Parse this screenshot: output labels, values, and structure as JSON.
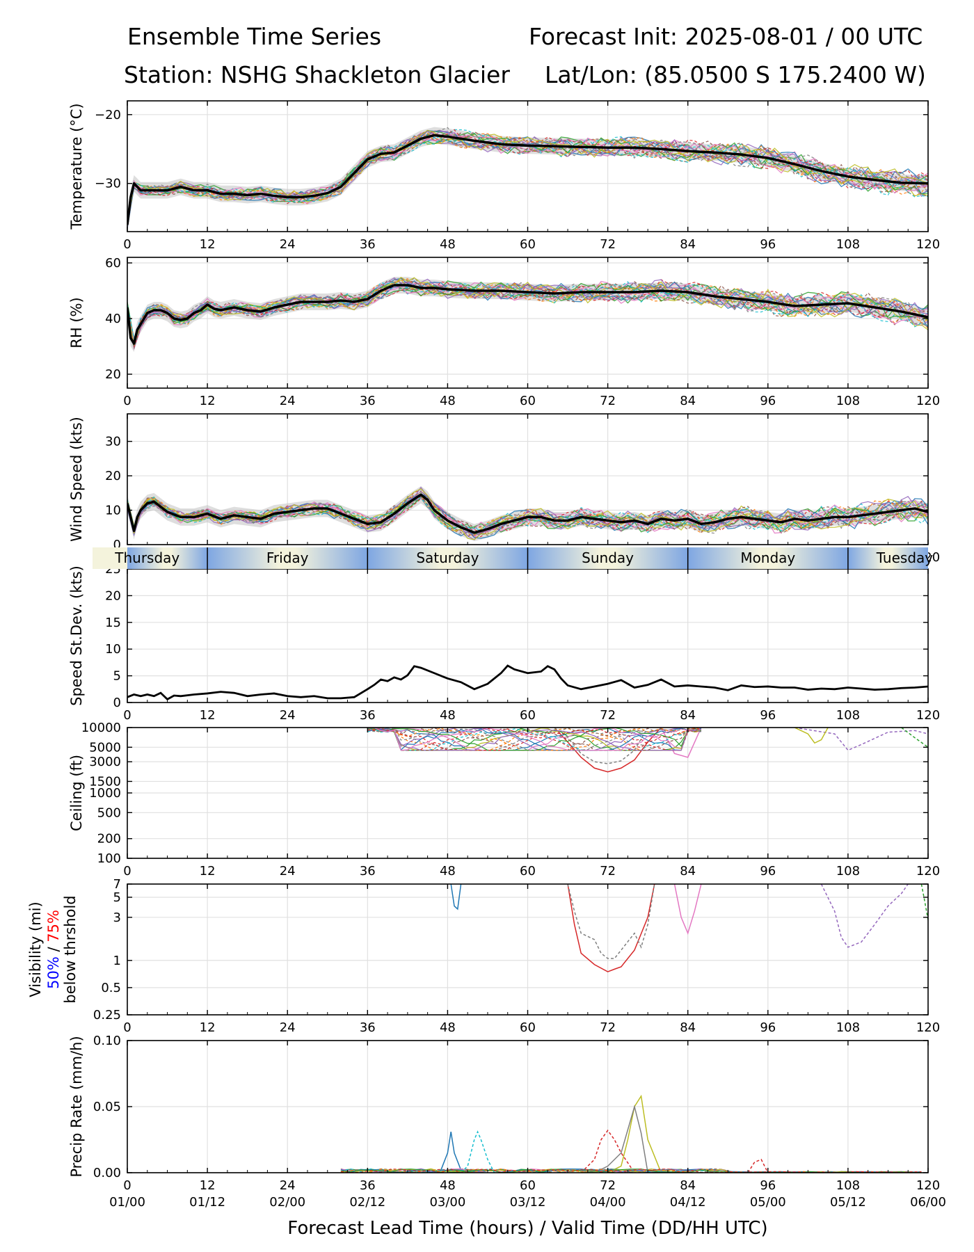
{
  "header": {
    "title_left": "Ensemble Time Series",
    "title_right": "Forecast Init: 2025-08-01 / 00 UTC",
    "station": "Station: NSHG Shackleton Glacier",
    "latlon": "Lat/Lon: (85.0500 S 175.2400 W)"
  },
  "x_axis": {
    "ticks": [
      0,
      12,
      24,
      36,
      48,
      60,
      72,
      84,
      96,
      108,
      120
    ],
    "valid_time_labels": [
      "01/00",
      "01/12",
      "02/00",
      "02/12",
      "03/00",
      "03/12",
      "04/00",
      "04/12",
      "05/00",
      "05/12",
      "06/00"
    ],
    "xlabel": "Forecast Lead Time (hours) / Valid Time (DD/HH UTC)",
    "range": [
      0,
      120
    ]
  },
  "day_band": {
    "labels": [
      "Thursday",
      "Friday",
      "Saturday",
      "Sunday",
      "Monday",
      "Tuesday"
    ],
    "boundaries_hours": [
      12,
      36,
      60,
      84,
      108
    ]
  },
  "colors": {
    "mean_line": "#000000",
    "spread_fill": "#bdbdbd",
    "band_light": "#f4f3dc",
    "band_dark": "#7ea6e2",
    "vis_50": "#0000ff",
    "vis_75": "#ff0000",
    "members": [
      "#1f77b4",
      "#ff7f0e",
      "#2ca02c",
      "#d62728",
      "#9467bd",
      "#8c564b",
      "#e377c2",
      "#7f7f7f",
      "#bcbd22",
      "#17becf"
    ]
  },
  "chart_data": [
    {
      "type": "line",
      "id": "temperature",
      "ylabel": "Temperature (°C)",
      "ylim": [
        -37,
        -18
      ],
      "yticks": [
        -30,
        -20
      ],
      "grid": true,
      "series": [
        {
          "name": "ensemble mean",
          "x": [
            0,
            0.5,
            1,
            2,
            4,
            6,
            8,
            10,
            12,
            14,
            16,
            18,
            20,
            22,
            24,
            26,
            28,
            30,
            32,
            34,
            36,
            38,
            40,
            42,
            44,
            46,
            48,
            52,
            56,
            60,
            64,
            68,
            72,
            76,
            80,
            84,
            88,
            92,
            96,
            100,
            104,
            108,
            112,
            116,
            120
          ],
          "y": [
            -36,
            -32,
            -30,
            -31,
            -31,
            -31,
            -30.5,
            -31,
            -31,
            -31.5,
            -31.5,
            -31.7,
            -31.5,
            -31.8,
            -32,
            -32,
            -31.8,
            -31.4,
            -30.5,
            -28.5,
            -26.5,
            -25.7,
            -25.5,
            -24.5,
            -23.5,
            -23,
            -23.2,
            -23.8,
            -24.3,
            -24.5,
            -24.6,
            -24.7,
            -24.8,
            -24.8,
            -25,
            -25.3,
            -25.5,
            -25.8,
            -26.3,
            -27.2,
            -28.2,
            -29,
            -29.5,
            -29.9,
            -30
          ]
        }
      ]
    },
    {
      "type": "line",
      "id": "rh",
      "ylabel": "RH (%)",
      "ylim": [
        15,
        62
      ],
      "yticks": [
        20,
        40,
        60
      ],
      "grid": true,
      "series": [
        {
          "name": "ensemble mean",
          "x": [
            0,
            0.5,
            1,
            1.5,
            2,
            3,
            4,
            5,
            6,
            7,
            8,
            9,
            10,
            11,
            12,
            13,
            14,
            16,
            18,
            20,
            22,
            24,
            26,
            28,
            30,
            32,
            34,
            36,
            38,
            40,
            42,
            44,
            46,
            48,
            52,
            56,
            60,
            64,
            68,
            72,
            76,
            80,
            84,
            88,
            92,
            96,
            100,
            104,
            108,
            112,
            116,
            120
          ],
          "y": [
            44,
            33,
            31,
            36,
            38,
            42,
            43,
            43,
            42,
            40,
            39.5,
            40,
            42,
            43,
            45,
            43.5,
            43,
            44,
            43,
            42.5,
            44,
            45,
            46,
            46,
            46,
            46.5,
            46,
            47,
            50,
            52,
            52,
            51,
            51,
            50.5,
            50,
            50,
            49.5,
            49,
            49.5,
            49.5,
            49.5,
            50,
            49.5,
            48,
            47,
            46,
            44.5,
            45,
            45.5,
            44,
            42.5,
            40.5
          ]
        }
      ]
    },
    {
      "type": "line",
      "id": "wind_speed",
      "ylabel": "Wind Speed (kts)",
      "ylim": [
        0,
        38
      ],
      "yticks": [
        0,
        10,
        20,
        30
      ],
      "grid": true,
      "series": [
        {
          "name": "ensemble mean",
          "x": [
            0,
            0.5,
            1,
            1.5,
            2,
            3,
            4,
            5,
            6,
            8,
            10,
            12,
            14,
            16,
            18,
            20,
            22,
            24,
            26,
            28,
            30,
            32,
            34,
            36,
            38,
            40,
            42,
            44,
            45,
            46,
            48,
            50,
            52,
            54,
            56,
            58,
            60,
            62,
            64,
            66,
            68,
            70,
            72,
            74,
            76,
            78,
            80,
            82,
            84,
            86,
            88,
            90,
            92,
            94,
            96,
            98,
            100,
            102,
            104,
            106,
            108,
            110,
            112,
            114,
            116,
            118,
            120
          ],
          "y": [
            12,
            8,
            4,
            8,
            10,
            12,
            12.5,
            11,
            9.5,
            8,
            8,
            9,
            7.5,
            8.5,
            8,
            7.5,
            9,
            9.5,
            10,
            10.5,
            10.5,
            9,
            7.5,
            6,
            6.5,
            9,
            12,
            14.5,
            13,
            10,
            7,
            5,
            3.5,
            4.5,
            6,
            7,
            8,
            8,
            7,
            7,
            8,
            7.5,
            7,
            6.5,
            7,
            6,
            7.5,
            7,
            7.5,
            6,
            6.5,
            7.5,
            8,
            7.5,
            7,
            6.5,
            7.5,
            7,
            7.5,
            8,
            8,
            8.5,
            9,
            9.5,
            10,
            10.5,
            9.5
          ]
        }
      ]
    },
    {
      "type": "line",
      "id": "speed_stdev",
      "ylabel": "Speed St.Dev. (kts)",
      "ylim": [
        0,
        25
      ],
      "yticks": [
        0,
        5,
        10,
        15,
        20,
        25
      ],
      "grid": true,
      "series": [
        {
          "name": "speed st.dev.",
          "x": [
            0,
            1,
            2,
            3,
            4,
            5,
            6,
            7,
            8,
            10,
            12,
            14,
            16,
            18,
            20,
            22,
            24,
            26,
            28,
            30,
            32,
            34,
            36,
            37,
            38,
            39,
            40,
            41,
            42,
            43,
            44,
            46,
            48,
            50,
            52,
            54,
            56,
            57,
            58,
            60,
            62,
            63,
            64,
            65,
            66,
            68,
            70,
            72,
            74,
            76,
            78,
            80,
            82,
            84,
            86,
            88,
            90,
            92,
            94,
            96,
            98,
            100,
            102,
            104,
            106,
            108,
            110,
            112,
            114,
            116,
            118,
            120
          ],
          "y": [
            1,
            1.5,
            1.2,
            1.5,
            1.2,
            1.8,
            0.6,
            1.3,
            1.2,
            1.5,
            1.7,
            2,
            1.8,
            1.2,
            1.5,
            1.7,
            1.2,
            1,
            1.2,
            0.8,
            0.8,
            1,
            2.5,
            3.3,
            4.3,
            4,
            4.7,
            4.3,
            5.1,
            6.8,
            6.5,
            5.5,
            4.5,
            3.8,
            2.5,
            3.5,
            5.5,
            6.9,
            6.2,
            5.5,
            5.8,
            6.8,
            6.2,
            4.5,
            3.2,
            2.5,
            3,
            3.5,
            4.2,
            2.8,
            3.3,
            4.3,
            3,
            3.2,
            3,
            2.8,
            2.3,
            3.2,
            2.9,
            3,
            2.8,
            2.8,
            2.4,
            2.6,
            2.5,
            2.8,
            2.6,
            2.4,
            2.5,
            2.7,
            2.8,
            3
          ]
        }
      ]
    },
    {
      "type": "line",
      "id": "ceiling",
      "ylabel": "Ceiling (ft)",
      "yscale": "log",
      "ylim": [
        100,
        10000
      ],
      "yticks": [
        100,
        200,
        500,
        1000,
        1500,
        3000,
        5000,
        10000
      ],
      "grid": true,
      "series": [
        {
          "name": "member-red",
          "x": [
            64,
            66,
            68,
            70,
            72,
            74,
            76,
            78,
            80
          ],
          "y": [
            10000,
            6000,
            3500,
            2400,
            2100,
            2400,
            3200,
            6000,
            10000
          ]
        },
        {
          "name": "member-gray",
          "x": [
            64,
            66,
            68,
            70,
            72,
            74,
            76,
            78
          ],
          "y": [
            10000,
            7000,
            4000,
            3000,
            2800,
            3100,
            4500,
            10000
          ]
        },
        {
          "name": "member-pink",
          "x": [
            80,
            82,
            84,
            86
          ],
          "y": [
            10000,
            4000,
            3500,
            10000
          ]
        },
        {
          "name": "member-purple",
          "x": [
            100,
            106,
            108,
            110,
            114,
            118,
            120
          ],
          "y": [
            10000,
            8000,
            4500,
            5500,
            8500,
            9000,
            8000
          ]
        },
        {
          "name": "member-olive",
          "x": [
            100,
            102,
            103,
            104,
            105
          ],
          "y": [
            10000,
            8000,
            5800,
            6500,
            10000
          ]
        },
        {
          "name": "member-green",
          "x": [
            116,
            118,
            120
          ],
          "y": [
            10000,
            7000,
            5000
          ]
        }
      ]
    },
    {
      "type": "line",
      "id": "visibility",
      "ylabel": "Visibility (mi)",
      "ylabel_2": "below thrshold",
      "ylabel_50": "50%",
      "ylabel_sep": "/",
      "ylabel_75": "75%",
      "yscale": "log",
      "ylim": [
        0.25,
        7
      ],
      "yticks": [
        0.25,
        0.5,
        1,
        3,
        5,
        7
      ],
      "grid": true,
      "series": [
        {
          "name": "member-red",
          "x": [
            66,
            67,
            68,
            70,
            72,
            73,
            74,
            76,
            78,
            79
          ],
          "y": [
            7,
            2.5,
            1.2,
            0.9,
            0.75,
            0.8,
            0.85,
            1.3,
            3,
            7
          ]
        },
        {
          "name": "member-gray",
          "x": [
            66,
            67,
            68,
            70,
            71,
            72,
            73,
            74,
            76,
            77,
            78,
            79
          ],
          "y": [
            7,
            3.5,
            2,
            1.7,
            1.2,
            1.05,
            1.05,
            1.3,
            2,
            1.4,
            2.5,
            7
          ]
        },
        {
          "name": "member-pink",
          "x": [
            82,
            83,
            84,
            85,
            86
          ],
          "y": [
            7,
            3,
            2,
            3.5,
            7
          ]
        },
        {
          "name": "member-purple",
          "x": [
            104,
            106,
            107,
            108,
            110,
            112,
            114,
            116,
            117
          ],
          "y": [
            7,
            3.5,
            1.8,
            1.4,
            1.6,
            2.5,
            4,
            5.5,
            7
          ]
        },
        {
          "name": "member-blue",
          "x": [
            48.5,
            49,
            49.5,
            50
          ],
          "y": [
            7,
            4,
            3.7,
            7
          ]
        },
        {
          "name": "member-green",
          "x": [
            119,
            119.5,
            120
          ],
          "y": [
            7,
            4.5,
            2.8
          ]
        }
      ]
    },
    {
      "type": "line",
      "id": "precip",
      "ylabel": "Precip Rate (mm/h)",
      "ylim": [
        0,
        0.1
      ],
      "yticks": [
        0,
        0.05,
        0.1
      ],
      "ytick_labels": [
        "0.00",
        "0.05",
        "0.10"
      ],
      "grid": true,
      "series": [
        {
          "name": "member-olive",
          "x": [
            72,
            74,
            75,
            76,
            77,
            78,
            80
          ],
          "y": [
            0,
            0.005,
            0.025,
            0.05,
            0.058,
            0.025,
            0
          ]
        },
        {
          "name": "member-red",
          "x": [
            68,
            70,
            71,
            72,
            73,
            74,
            76
          ],
          "y": [
            0,
            0.01,
            0.025,
            0.032,
            0.025,
            0.015,
            0
          ]
        },
        {
          "name": "member-blue",
          "x": [
            46,
            47,
            48,
            48.5,
            49,
            50,
            51
          ],
          "y": [
            0,
            0.002,
            0.015,
            0.031,
            0.015,
            0.002,
            0
          ]
        },
        {
          "name": "member-cyan",
          "x": [
            50,
            51,
            52,
            52.5,
            53,
            54,
            55
          ],
          "y": [
            0,
            0.005,
            0.025,
            0.031,
            0.025,
            0.01,
            0
          ]
        },
        {
          "name": "member-gray",
          "x": [
            70,
            72,
            74,
            76,
            77,
            78
          ],
          "y": [
            0,
            0.005,
            0.015,
            0.05,
            0.03,
            0
          ]
        },
        {
          "name": "member-red-2",
          "x": [
            93,
            94,
            95,
            96
          ],
          "y": [
            0,
            0.008,
            0.01,
            0
          ]
        }
      ]
    }
  ]
}
